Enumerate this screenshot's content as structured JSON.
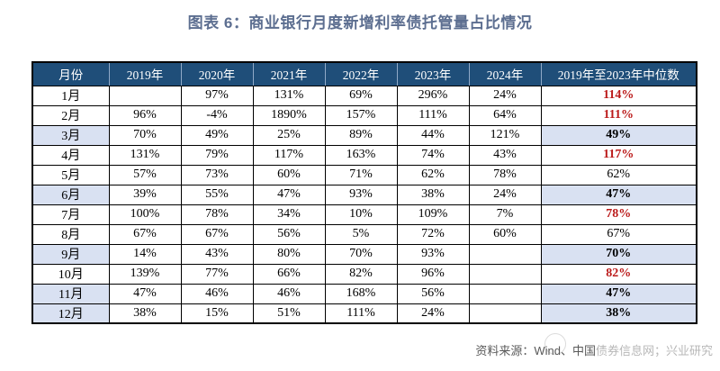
{
  "title": "图表 6：商业银行月度新增利率债托管量占比情况",
  "table": {
    "columns": [
      "月份",
      "2019年",
      "2020年",
      "2021年",
      "2022年",
      "2023年",
      "2024年",
      "2019年至2023年中位数"
    ],
    "rows": [
      {
        "month": "1月",
        "values": [
          "",
          "97%",
          "131%",
          "69%",
          "296%",
          "24%"
        ],
        "median": "114%",
        "median_style": "red",
        "highlight": false
      },
      {
        "month": "2月",
        "values": [
          "96%",
          "-4%",
          "1890%",
          "157%",
          "111%",
          "64%"
        ],
        "median": "111%",
        "median_style": "red",
        "highlight": false
      },
      {
        "month": "3月",
        "values": [
          "70%",
          "49%",
          "25%",
          "89%",
          "44%",
          "121%"
        ],
        "median": "49%",
        "median_style": "bold",
        "highlight": true
      },
      {
        "month": "4月",
        "values": [
          "131%",
          "79%",
          "117%",
          "163%",
          "74%",
          "43%"
        ],
        "median": "117%",
        "median_style": "red",
        "highlight": false
      },
      {
        "month": "5月",
        "values": [
          "57%",
          "73%",
          "60%",
          "71%",
          "62%",
          "78%"
        ],
        "median": "62%",
        "median_style": "regular",
        "highlight": false
      },
      {
        "month": "6月",
        "values": [
          "39%",
          "55%",
          "47%",
          "93%",
          "38%",
          "24%"
        ],
        "median": "47%",
        "median_style": "bold",
        "highlight": true
      },
      {
        "month": "7月",
        "values": [
          "100%",
          "78%",
          "34%",
          "10%",
          "109%",
          "7%"
        ],
        "median": "78%",
        "median_style": "red",
        "highlight": false
      },
      {
        "month": "8月",
        "values": [
          "67%",
          "67%",
          "56%",
          "5%",
          "72%",
          "60%"
        ],
        "median": "67%",
        "median_style": "regular",
        "highlight": false
      },
      {
        "month": "9月",
        "values": [
          "14%",
          "43%",
          "80%",
          "70%",
          "93%",
          ""
        ],
        "median": "70%",
        "median_style": "bold",
        "highlight": true
      },
      {
        "month": "10月",
        "values": [
          "139%",
          "77%",
          "66%",
          "82%",
          "96%",
          ""
        ],
        "median": "82%",
        "median_style": "red",
        "highlight": false
      },
      {
        "month": "11月",
        "values": [
          "47%",
          "46%",
          "46%",
          "168%",
          "56%",
          ""
        ],
        "median": "47%",
        "median_style": "bold",
        "highlight": true
      },
      {
        "month": "12月",
        "values": [
          "38%",
          "15%",
          "51%",
          "111%",
          "24%",
          ""
        ],
        "median": "38%",
        "median_style": "bold",
        "highlight": true
      }
    ]
  },
  "footer": {
    "source_solid": "资料来源：Wind、中国",
    "source_faded": "债券信息网；兴业研究"
  },
  "colors": {
    "header_bg": "#1F4E79",
    "header_text": "#FFFFFF",
    "highlight_bg": "#D9E1F2",
    "median_red": "#BB1A1A",
    "title_color": "#5C6E90",
    "border": "#000000"
  },
  "chart_data": {
    "type": "table",
    "title": "图表 6：商业银行月度新增利率债托管量占比情况",
    "unit": "%",
    "categories": [
      "1月",
      "2月",
      "3月",
      "4月",
      "5月",
      "6月",
      "7月",
      "8月",
      "9月",
      "10月",
      "11月",
      "12月"
    ],
    "series": [
      {
        "name": "2019年",
        "values": [
          null,
          96,
          70,
          131,
          57,
          39,
          100,
          67,
          14,
          139,
          47,
          38
        ]
      },
      {
        "name": "2020年",
        "values": [
          97,
          -4,
          49,
          79,
          73,
          55,
          78,
          67,
          43,
          77,
          46,
          15
        ]
      },
      {
        "name": "2021年",
        "values": [
          131,
          1890,
          25,
          117,
          60,
          47,
          34,
          56,
          80,
          66,
          46,
          51
        ]
      },
      {
        "name": "2022年",
        "values": [
          69,
          157,
          89,
          163,
          71,
          93,
          10,
          5,
          70,
          82,
          168,
          111
        ]
      },
      {
        "name": "2023年",
        "values": [
          296,
          111,
          44,
          74,
          62,
          38,
          109,
          72,
          93,
          96,
          56,
          24
        ]
      },
      {
        "name": "2024年",
        "values": [
          24,
          64,
          121,
          43,
          78,
          24,
          7,
          60,
          null,
          null,
          null,
          null
        ]
      },
      {
        "name": "2019年至2023年中位数",
        "values": [
          114,
          111,
          49,
          117,
          62,
          47,
          78,
          67,
          70,
          82,
          47,
          38
        ]
      }
    ]
  }
}
